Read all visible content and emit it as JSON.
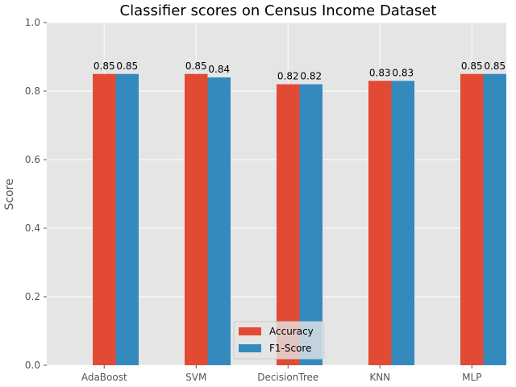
{
  "chart_data": {
    "type": "bar",
    "title": "Classifier scores on Census Income Dataset",
    "xlabel": "",
    "ylabel": "Score",
    "ylim": [
      0,
      1.0
    ],
    "yticks": [
      "0.0",
      "0.2",
      "0.4",
      "0.6",
      "0.8",
      "1.0"
    ],
    "categories": [
      "AdaBoost",
      "SVM",
      "DecisionTree",
      "KNN",
      "MLP"
    ],
    "series": [
      {
        "name": "Accuracy",
        "color": "#E24A33",
        "values": [
          0.85,
          0.85,
          0.82,
          0.83,
          0.85
        ],
        "labels": [
          "0.85",
          "0.85",
          "0.82",
          "0.83",
          "0.85"
        ]
      },
      {
        "name": "F1-Score",
        "color": "#348ABD",
        "values": [
          0.85,
          0.84,
          0.82,
          0.83,
          0.85
        ],
        "labels": [
          "0.85",
          "0.84",
          "0.82",
          "0.83",
          "0.85"
        ]
      }
    ],
    "grid": true,
    "legend_position": "bottom-center",
    "background_color": "#E5E5E5",
    "grid_color": "#FFFFFF"
  }
}
